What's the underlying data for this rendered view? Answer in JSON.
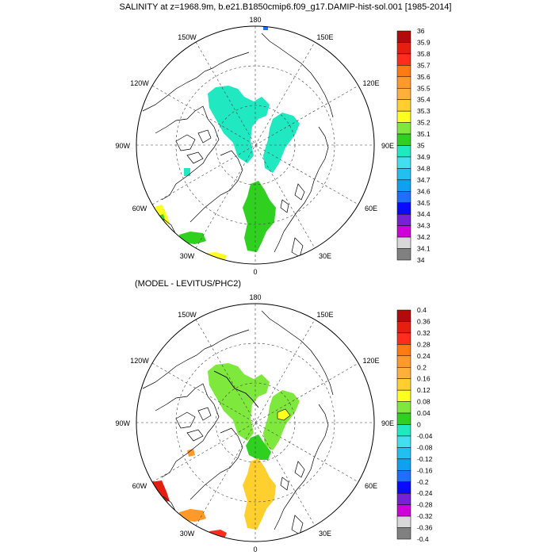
{
  "title": "SALINITY at z=1968.9m, b.e21.B1850cmip6.f09_g17.DAMIP-hist-sol.001 [1985-2014]",
  "subtitle": "(MODEL - LEVITUS/PHC2)",
  "longitude_labels": {
    "top": "180",
    "bottom": "0",
    "left": "90W",
    "right": "90E",
    "upper_left_1": "150W",
    "upper_left_2": "120W",
    "upper_right_1": "150E",
    "upper_right_2": "120E",
    "lower_left_1": "60W",
    "lower_left_2": "30W",
    "lower_right_1": "60E",
    "lower_right_2": "30E"
  },
  "colorbar_top": {
    "labels": [
      "36",
      "35.9",
      "35.8",
      "35.7",
      "35.6",
      "35.5",
      "35.4",
      "35.3",
      "35.2",
      "35.1",
      "35",
      "34.9",
      "34.8",
      "34.7",
      "34.6",
      "34.5",
      "34.4",
      "34.3",
      "34.2",
      "34.1",
      "34"
    ],
    "colors": [
      "#b50a0a",
      "#e61e0f",
      "#ff2d1e",
      "#ff7a10",
      "#ff9a2a",
      "#ffb03c",
      "#ffcf2e",
      "#ffff20",
      "#7ee83c",
      "#30d020",
      "#20e8c0",
      "#40e0f0",
      "#20c0f0",
      "#10a0f0",
      "#1e6eff",
      "#0a0aff",
      "#7820d8",
      "#d000d8",
      "#d8d8d8",
      "#808080"
    ]
  },
  "colorbar_bottom": {
    "labels": [
      "0.4",
      "0.36",
      "0.32",
      "0.28",
      "0.24",
      "0.2",
      "0.16",
      "0.12",
      "0.08",
      "0.04",
      "0",
      "-0.04",
      "-0.08",
      "-0.12",
      "-0.16",
      "-0.2",
      "-0.24",
      "-0.28",
      "-0.32",
      "-0.36",
      "-0.4"
    ],
    "colors": [
      "#b50a0a",
      "#e61e0f",
      "#ff2d1e",
      "#ff7a10",
      "#ff9a2a",
      "#ffb03c",
      "#ffcf2e",
      "#ffff20",
      "#7ee83c",
      "#30d020",
      "#20e8c0",
      "#40e0f0",
      "#20c0f0",
      "#10a0f0",
      "#1e6eff",
      "#0a0aff",
      "#7820d8",
      "#d000d8",
      "#d8d8d8",
      "#808080"
    ]
  }
}
